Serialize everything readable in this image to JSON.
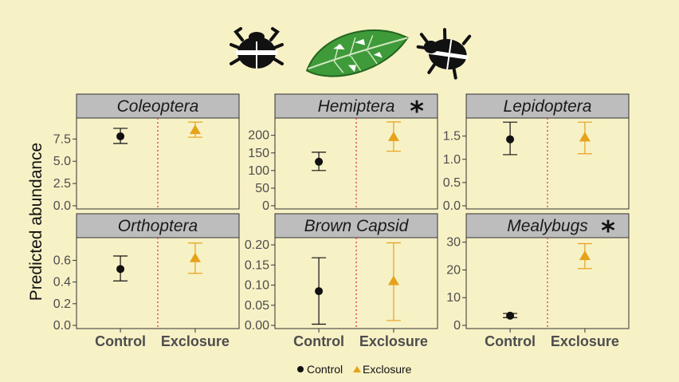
{
  "figure": {
    "ylabel": "Predicted abundance",
    "legend": [
      {
        "label": "Control",
        "color": "#111111",
        "shape": "circle"
      },
      {
        "label": "Exclosure",
        "color": "#E6A21A",
        "shape": "triangle"
      }
    ],
    "icons": [
      "beetle-icon",
      "leaf-icon",
      "beetle-icon"
    ]
  },
  "colors": {
    "control": "#111111",
    "exclosure": "#E6A21A",
    "divider": "#e05050",
    "strip_fill": "#bdbdbd",
    "panel_bg": "#f7f1c6"
  },
  "chart_data": [
    {
      "type": "scatter",
      "title": "Coleoptera",
      "significant": false,
      "categories": [
        "Control",
        "Exclosure"
      ],
      "ylim": [
        0,
        9.5
      ],
      "yticks": [
        "0.0",
        "2.5",
        "5.0",
        "7.5"
      ],
      "series": [
        {
          "name": "Control",
          "values": [
            7.8
          ],
          "lower": [
            7.0
          ],
          "upper": [
            8.7
          ]
        },
        {
          "name": "Exclosure",
          "values": [
            8.5
          ],
          "lower": [
            7.7
          ],
          "upper": [
            9.4
          ]
        }
      ]
    },
    {
      "type": "scatter",
      "title": "Hemiptera",
      "significant": true,
      "categories": [
        "Control",
        "Exclosure"
      ],
      "ylim": [
        0,
        240
      ],
      "yticks": [
        "0",
        "50",
        "100",
        "150",
        "200"
      ],
      "series": [
        {
          "name": "Control",
          "values": [
            125
          ],
          "lower": [
            100
          ],
          "upper": [
            152
          ]
        },
        {
          "name": "Exclosure",
          "values": [
            195
          ],
          "lower": [
            155
          ],
          "upper": [
            238
          ]
        }
      ]
    },
    {
      "type": "scatter",
      "title": "Lepidoptera",
      "significant": false,
      "categories": [
        "Control",
        "Exclosure"
      ],
      "ylim": [
        0,
        1.82
      ],
      "yticks": [
        "0.0",
        "0.5",
        "1.0",
        "1.5"
      ],
      "series": [
        {
          "name": "Control",
          "values": [
            1.43
          ],
          "lower": [
            1.1
          ],
          "upper": [
            1.8
          ]
        },
        {
          "name": "Exclosure",
          "values": [
            1.47
          ],
          "lower": [
            1.12
          ],
          "upper": [
            1.8
          ]
        }
      ]
    },
    {
      "type": "scatter",
      "title": "Orthoptera",
      "significant": false,
      "categories": [
        "Control",
        "Exclosure"
      ],
      "ylim": [
        0,
        0.78
      ],
      "yticks": [
        "0.0",
        "0.2",
        "0.4",
        "0.6"
      ],
      "series": [
        {
          "name": "Control",
          "values": [
            0.52
          ],
          "lower": [
            0.41
          ],
          "upper": [
            0.64
          ]
        },
        {
          "name": "Exclosure",
          "values": [
            0.62
          ],
          "lower": [
            0.48
          ],
          "upper": [
            0.76
          ]
        }
      ]
    },
    {
      "type": "scatter",
      "title": "Brown Capsid",
      "significant": false,
      "categories": [
        "Control",
        "Exclosure"
      ],
      "ylim": [
        0,
        0.21
      ],
      "yticks": [
        "0.00",
        "0.05",
        "0.10",
        "0.15",
        "0.20"
      ],
      "series": [
        {
          "name": "Control",
          "values": [
            0.085
          ],
          "lower": [
            0.003
          ],
          "upper": [
            0.168
          ]
        },
        {
          "name": "Exclosure",
          "values": [
            0.11
          ],
          "lower": [
            0.012
          ],
          "upper": [
            0.205
          ]
        }
      ]
    },
    {
      "type": "scatter",
      "title": "Mealybugs",
      "significant": true,
      "categories": [
        "Control",
        "Exclosure"
      ],
      "ylim": [
        0,
        30.5
      ],
      "yticks": [
        "0",
        "10",
        "20",
        "30"
      ],
      "series": [
        {
          "name": "Control",
          "values": [
            3.5
          ],
          "lower": [
            2.8
          ],
          "upper": [
            4.3
          ]
        },
        {
          "name": "Exclosure",
          "values": [
            25
          ],
          "lower": [
            20.5
          ],
          "upper": [
            29.5
          ]
        }
      ]
    }
  ]
}
